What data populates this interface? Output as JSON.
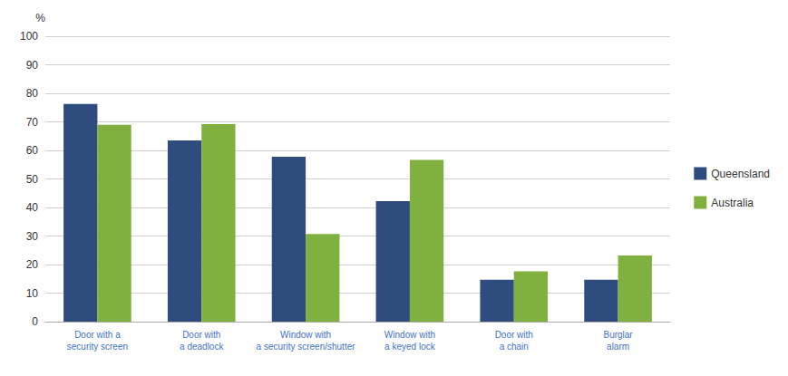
{
  "chart_data": {
    "type": "bar",
    "categories": [
      "Door with a\nsecurity screen",
      "Door with\na deadlock",
      "Window with\na security screen/shutter",
      "Window with\na keyed lock",
      "Door with\na chain",
      "Burglar\nalarm"
    ],
    "series": [
      {
        "name": "Queensland",
        "color": "#2E4C7E",
        "values": [
          76.3,
          63.5,
          57.8,
          42.2,
          14.7,
          14.7
        ]
      },
      {
        "name": "Australia",
        "color": "#80B040",
        "values": [
          69.0,
          69.2,
          30.7,
          56.7,
          17.6,
          23.2
        ]
      }
    ],
    "ylabel": "%",
    "ylim": [
      0,
      100
    ],
    "yticks": [
      0,
      10,
      20,
      30,
      40,
      50,
      60,
      70,
      80,
      90,
      100
    ],
    "grid": true,
    "legend": "right"
  }
}
